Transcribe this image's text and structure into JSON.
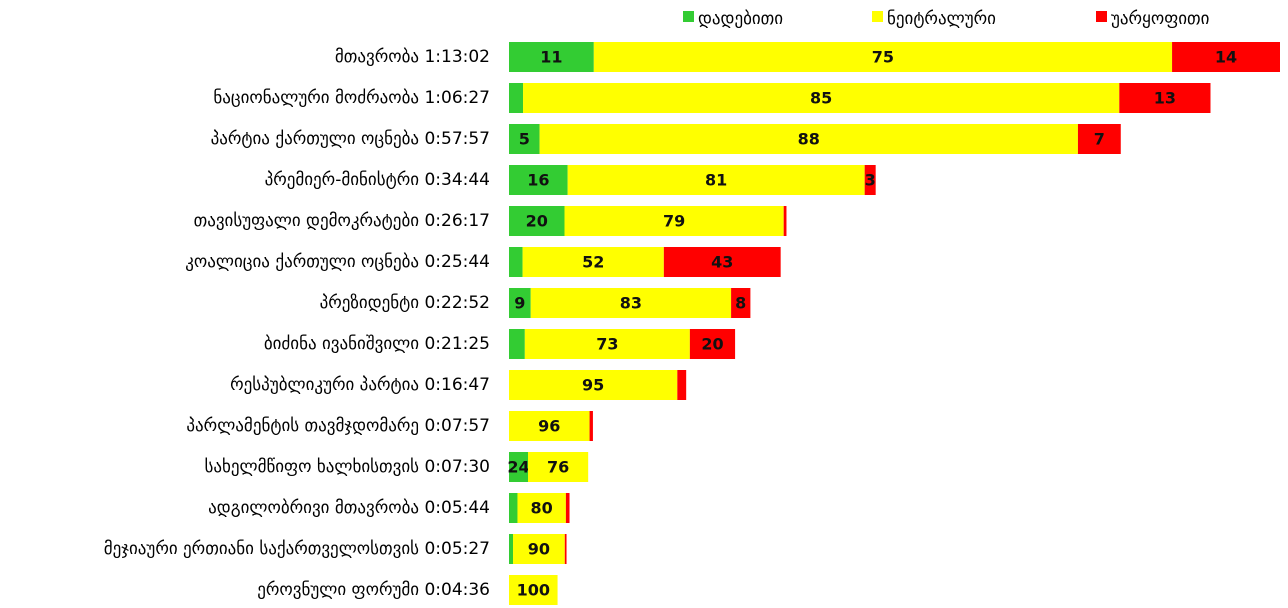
{
  "chart_data": {
    "type": "bar",
    "orientation": "horizontal",
    "stacked": true,
    "categories": [
      "მთავრობა",
      "ნაციონალური მოძრაობა",
      "პარტია ქართული ოცნება",
      "პრემიერ-მინისტრი",
      "თავისუფალი დემოკრატები",
      "კოალიცია ქართული ოცნება",
      "პრეზიდენტი",
      "ბიძინა ივანიშვილი",
      "რესპუბლიკური პარტია",
      "პარლამენტის თავმჯდომარე",
      "სახელმწიფო ხალხისთვის",
      "ადგილობრივი მთავრობა",
      "მეჯიაური ერთიანი საქართველოსთვის",
      "ეროვნული ფორუმი"
    ],
    "durations": [
      {
        "value": 4382,
        "label": "1:13:02"
      },
      {
        "value": 3987,
        "label": "1:06:27"
      },
      {
        "value": 3477,
        "label": "0:57:57"
      },
      {
        "value": 2084,
        "label": "0:34:44"
      },
      {
        "value": 1577,
        "label": "0:26:17"
      },
      {
        "value": 1544,
        "label": "0:25:44"
      },
      {
        "value": 1372,
        "label": "0:22:52"
      },
      {
        "value": 1285,
        "label": "0:21:25"
      },
      {
        "value": 1007,
        "label": "0:16:47"
      },
      {
        "value": 477,
        "label": "0:07:57"
      },
      {
        "value": 450,
        "label": "0:07:30"
      },
      {
        "value": 344,
        "label": "0:05:44"
      },
      {
        "value": 327,
        "label": "0:05:27"
      },
      {
        "value": 276,
        "label": "0:04:36"
      }
    ],
    "series": [
      {
        "name": "დადებითი",
        "color": "#33cc33",
        "values": [
          11,
          2,
          5,
          16,
          20,
          5,
          9,
          7,
          0,
          0,
          24,
          14,
          7,
          0
        ],
        "value_labels": [
          "11",
          null,
          "5",
          "16",
          "20",
          null,
          "9",
          null,
          null,
          null,
          "24",
          null,
          null,
          null
        ]
      },
      {
        "name": "ნეიტრალური",
        "color": "#ffff00",
        "values": [
          75,
          85,
          88,
          81,
          79,
          52,
          83,
          73,
          95,
          96,
          76,
          80,
          90,
          100
        ],
        "value_labels": [
          "75",
          "85",
          "88",
          "81",
          "79",
          "52",
          "83",
          "73",
          "95",
          "96",
          "76",
          "80",
          "90",
          "100"
        ]
      },
      {
        "name": "უარყოფითი",
        "color": "#ff0000",
        "values": [
          14,
          13,
          7,
          3,
          1,
          43,
          8,
          20,
          5,
          4,
          0,
          6,
          3,
          0
        ],
        "value_labels": [
          "14",
          "13",
          "7",
          "3",
          null,
          "43",
          "8",
          "20",
          null,
          null,
          null,
          null,
          null,
          null
        ]
      }
    ],
    "legend": "top-right"
  }
}
